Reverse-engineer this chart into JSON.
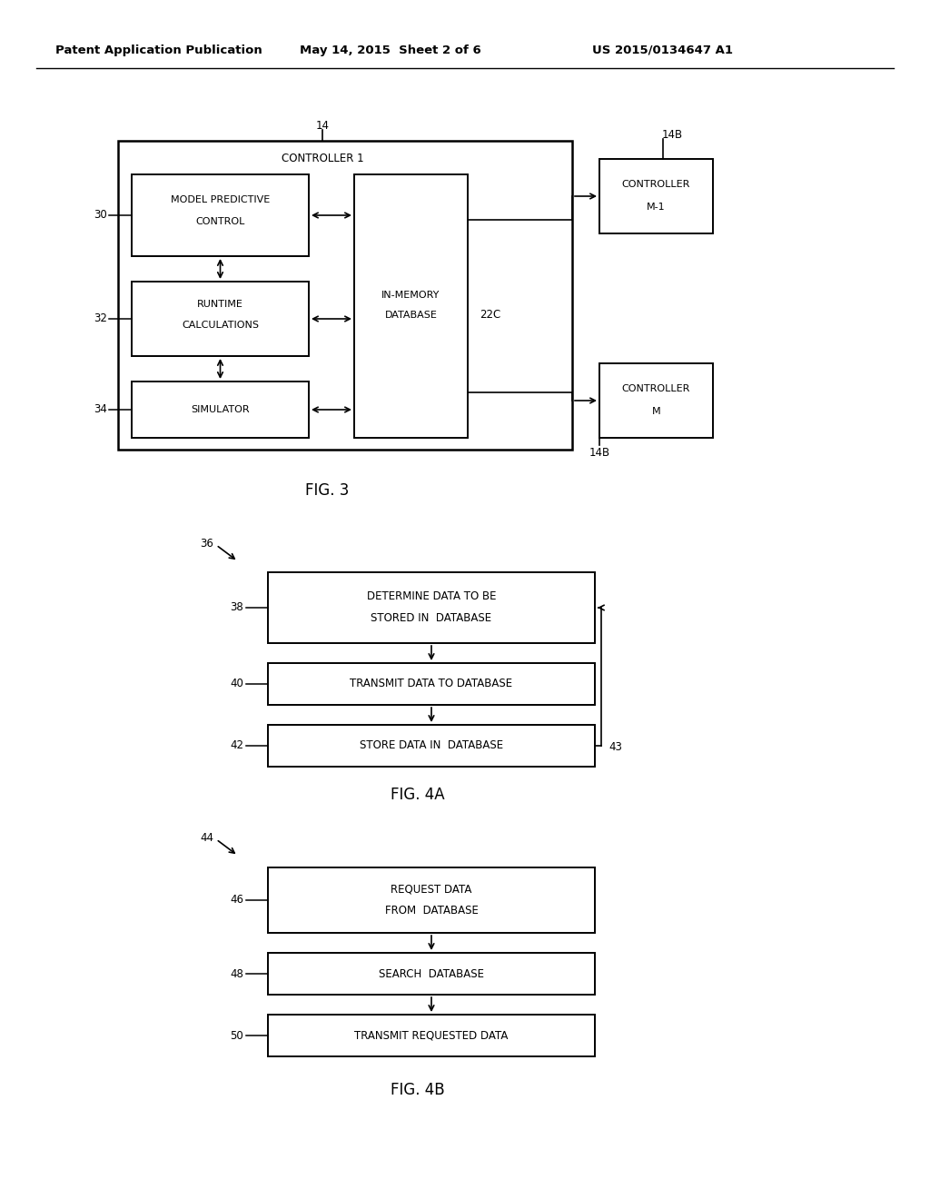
{
  "bg_color": "#ffffff",
  "header_left": "Patent Application Publication",
  "header_mid": "May 14, 2015  Sheet 2 of 6",
  "header_right": "US 2015/0134647 A1"
}
